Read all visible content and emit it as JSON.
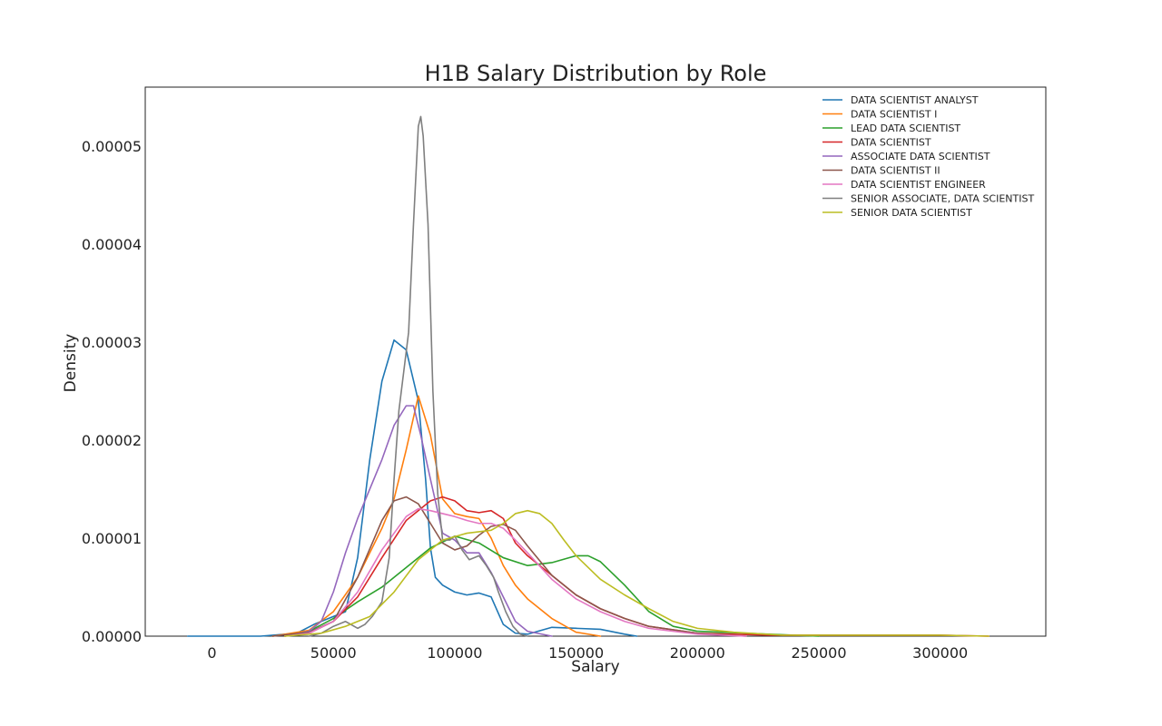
{
  "chart_data": {
    "type": "line",
    "title": "H1B Salary Distribution by Role",
    "xlabel": "Salary",
    "ylabel": "Density",
    "xlim": [
      -27500,
      343500
    ],
    "ylim": [
      0,
      5.6e-05
    ],
    "x_ticks": [
      0,
      50000,
      100000,
      150000,
      200000,
      250000,
      300000
    ],
    "x_tick_labels": [
      "0",
      "50000",
      "100000",
      "150000",
      "200000",
      "250000",
      "300000"
    ],
    "y_ticks": [
      0,
      1e-05,
      2e-05,
      3e-05,
      4e-05,
      5e-05
    ],
    "y_tick_labels": [
      "0.00000",
      "0.00001",
      "0.00002",
      "0.00003",
      "0.00004",
      "0.00005"
    ],
    "grid": false,
    "legend_position": "top-right",
    "series": [
      {
        "name": "DATA SCIENTIST ANALYST",
        "color": "#1f77b4",
        "points": [
          [
            -10000,
            0
          ],
          [
            20000,
            0
          ],
          [
            35000,
            3e-07
          ],
          [
            42000,
            1.2e-06
          ],
          [
            48000,
            1.8e-06
          ],
          [
            55000,
            2.5e-06
          ],
          [
            60000,
            8e-06
          ],
          [
            65000,
            1.8e-05
          ],
          [
            70000,
            2.6e-05
          ],
          [
            75000,
            3.02e-05
          ],
          [
            80000,
            2.92e-05
          ],
          [
            85000,
            2.4e-05
          ],
          [
            88000,
            1.6e-05
          ],
          [
            90000,
            9e-06
          ],
          [
            92000,
            6e-06
          ],
          [
            95000,
            5.2e-06
          ],
          [
            100000,
            4.5e-06
          ],
          [
            105000,
            4.2e-06
          ],
          [
            110000,
            4.4e-06
          ],
          [
            115000,
            4e-06
          ],
          [
            120000,
            1.2e-06
          ],
          [
            125000,
            3e-07
          ],
          [
            130000,
            2e-07
          ],
          [
            140000,
            9e-07
          ],
          [
            150000,
            8e-07
          ],
          [
            160000,
            7e-07
          ],
          [
            170000,
            2e-07
          ],
          [
            175000,
            0
          ]
        ]
      },
      {
        "name": "DATA SCIENTIST I",
        "color": "#ff7f0e",
        "points": [
          [
            25000,
            0
          ],
          [
            40000,
            6e-07
          ],
          [
            50000,
            2.5e-06
          ],
          [
            60000,
            6e-06
          ],
          [
            70000,
            1.1e-05
          ],
          [
            75000,
            1.4e-05
          ],
          [
            80000,
            1.9e-05
          ],
          [
            85000,
            2.45e-05
          ],
          [
            90000,
            2.05e-05
          ],
          [
            95000,
            1.4e-05
          ],
          [
            100000,
            1.25e-05
          ],
          [
            105000,
            1.22e-05
          ],
          [
            110000,
            1.2e-05
          ],
          [
            115000,
            1e-05
          ],
          [
            120000,
            7.2e-06
          ],
          [
            125000,
            5.2e-06
          ],
          [
            130000,
            3.8e-06
          ],
          [
            140000,
            1.8e-06
          ],
          [
            150000,
            4e-07
          ],
          [
            160000,
            0
          ]
        ]
      },
      {
        "name": "LEAD DATA SCIENTIST",
        "color": "#2ca02c",
        "points": [
          [
            30000,
            0
          ],
          [
            40000,
            5e-07
          ],
          [
            50000,
            1.8e-06
          ],
          [
            60000,
            3.5e-06
          ],
          [
            70000,
            5e-06
          ],
          [
            80000,
            7e-06
          ],
          [
            90000,
            9e-06
          ],
          [
            100000,
            1.02e-05
          ],
          [
            110000,
            9.5e-06
          ],
          [
            120000,
            8e-06
          ],
          [
            130000,
            7.2e-06
          ],
          [
            140000,
            7.5e-06
          ],
          [
            150000,
            8.2e-06
          ],
          [
            155000,
            8.2e-06
          ],
          [
            160000,
            7.6e-06
          ],
          [
            170000,
            5.2e-06
          ],
          [
            180000,
            2.5e-06
          ],
          [
            190000,
            1e-06
          ],
          [
            200000,
            5e-07
          ],
          [
            220000,
            3e-07
          ],
          [
            250000,
            0
          ]
        ]
      },
      {
        "name": "DATA SCIENTIST",
        "color": "#d62728",
        "points": [
          [
            30000,
            0
          ],
          [
            40000,
            3e-07
          ],
          [
            50000,
            1.5e-06
          ],
          [
            60000,
            4e-06
          ],
          [
            70000,
            8e-06
          ],
          [
            80000,
            1.18e-05
          ],
          [
            90000,
            1.38e-05
          ],
          [
            95000,
            1.42e-05
          ],
          [
            100000,
            1.38e-05
          ],
          [
            105000,
            1.28e-05
          ],
          [
            110000,
            1.26e-05
          ],
          [
            115000,
            1.28e-05
          ],
          [
            120000,
            1.2e-05
          ],
          [
            125000,
            9.5e-06
          ],
          [
            130000,
            8.2e-06
          ],
          [
            140000,
            6.2e-06
          ],
          [
            150000,
            4.2e-06
          ],
          [
            160000,
            2.8e-06
          ],
          [
            170000,
            1.8e-06
          ],
          [
            180000,
            1e-06
          ],
          [
            200000,
            3e-07
          ],
          [
            230000,
            1e-07
          ],
          [
            260000,
            1e-07
          ],
          [
            300000,
            1e-07
          ],
          [
            320000,
            0
          ]
        ]
      },
      {
        "name": "ASSOCIATE DATA SCIENTIST",
        "color": "#9467bd",
        "points": [
          [
            30000,
            0
          ],
          [
            40000,
            5e-07
          ],
          [
            45000,
            1.5e-06
          ],
          [
            50000,
            4.5e-06
          ],
          [
            55000,
            8.5e-06
          ],
          [
            60000,
            1.2e-05
          ],
          [
            65000,
            1.5e-05
          ],
          [
            70000,
            1.8e-05
          ],
          [
            75000,
            2.15e-05
          ],
          [
            80000,
            2.35e-05
          ],
          [
            83000,
            2.35e-05
          ],
          [
            86000,
            2.05e-05
          ],
          [
            90000,
            1.6e-05
          ],
          [
            95000,
            1.05e-05
          ],
          [
            100000,
            9.8e-06
          ],
          [
            105000,
            8.5e-06
          ],
          [
            110000,
            8.5e-06
          ],
          [
            115000,
            6.5e-06
          ],
          [
            120000,
            4e-06
          ],
          [
            125000,
            1.5e-06
          ],
          [
            130000,
            5e-07
          ],
          [
            140000,
            0
          ]
        ]
      },
      {
        "name": "DATA SCIENTIST II",
        "color": "#8c564b",
        "points": [
          [
            25000,
            0
          ],
          [
            40000,
            4e-07
          ],
          [
            50000,
            1.5e-06
          ],
          [
            60000,
            6e-06
          ],
          [
            70000,
            1.18e-05
          ],
          [
            75000,
            1.38e-05
          ],
          [
            80000,
            1.42e-05
          ],
          [
            85000,
            1.35e-05
          ],
          [
            90000,
            1.15e-05
          ],
          [
            95000,
            9.5e-06
          ],
          [
            100000,
            8.8e-06
          ],
          [
            105000,
            9.2e-06
          ],
          [
            110000,
            1.03e-05
          ],
          [
            115000,
            1.12e-05
          ],
          [
            120000,
            1.14e-05
          ],
          [
            125000,
            1.08e-05
          ],
          [
            130000,
            9.2e-06
          ],
          [
            140000,
            6.2e-06
          ],
          [
            150000,
            4.2e-06
          ],
          [
            160000,
            2.8e-06
          ],
          [
            170000,
            1.8e-06
          ],
          [
            180000,
            1e-06
          ],
          [
            200000,
            3e-07
          ],
          [
            220000,
            0
          ]
        ]
      },
      {
        "name": "DATA SCIENTIST ENGINEER",
        "color": "#e377c2",
        "points": [
          [
            30000,
            0
          ],
          [
            40000,
            3e-07
          ],
          [
            50000,
            1.5e-06
          ],
          [
            60000,
            4.5e-06
          ],
          [
            70000,
            8.8e-06
          ],
          [
            80000,
            1.22e-05
          ],
          [
            85000,
            1.3e-05
          ],
          [
            90000,
            1.28e-05
          ],
          [
            95000,
            1.25e-05
          ],
          [
            100000,
            1.22e-05
          ],
          [
            105000,
            1.18e-05
          ],
          [
            110000,
            1.15e-05
          ],
          [
            115000,
            1.15e-05
          ],
          [
            120000,
            1.1e-05
          ],
          [
            125000,
            9.8e-06
          ],
          [
            130000,
            8.5e-06
          ],
          [
            140000,
            5.8e-06
          ],
          [
            150000,
            3.8e-06
          ],
          [
            160000,
            2.5e-06
          ],
          [
            170000,
            1.5e-06
          ],
          [
            180000,
            8e-07
          ],
          [
            200000,
            2e-07
          ],
          [
            220000,
            0
          ]
        ]
      },
      {
        "name": "SENIOR ASSOCIATE, DATA SCIENTIST",
        "color": "#7f7f7f",
        "points": [
          [
            40000,
            0
          ],
          [
            45000,
            3e-07
          ],
          [
            50000,
            1e-06
          ],
          [
            55000,
            1.5e-06
          ],
          [
            60000,
            8e-07
          ],
          [
            63000,
            1.2e-06
          ],
          [
            66000,
            2e-06
          ],
          [
            70000,
            3.5e-06
          ],
          [
            73000,
            8e-06
          ],
          [
            75000,
            1.6e-05
          ],
          [
            77000,
            2.3e-05
          ],
          [
            79000,
            2.7e-05
          ],
          [
            81000,
            3.1e-05
          ],
          [
            83000,
            4.2e-05
          ],
          [
            85000,
            5.2e-05
          ],
          [
            86000,
            5.3e-05
          ],
          [
            87000,
            5.1e-05
          ],
          [
            89000,
            4.2e-05
          ],
          [
            91000,
            2.5e-05
          ],
          [
            93000,
            1.45e-05
          ],
          [
            95000,
            9.8e-06
          ],
          [
            98000,
            9.8e-06
          ],
          [
            100000,
            1.02e-05
          ],
          [
            103000,
            8.8e-06
          ],
          [
            106000,
            7.8e-06
          ],
          [
            110000,
            8.2e-06
          ],
          [
            113000,
            7.2e-06
          ],
          [
            116000,
            6e-06
          ],
          [
            118000,
            4.5e-06
          ],
          [
            121000,
            2.5e-06
          ],
          [
            124000,
            1e-06
          ],
          [
            127000,
            2e-07
          ],
          [
            130000,
            0
          ]
        ]
      },
      {
        "name": "SENIOR DATA SCIENTIST",
        "color": "#bcbd22",
        "points": [
          [
            30000,
            0
          ],
          [
            45000,
            3e-07
          ],
          [
            55000,
            1e-06
          ],
          [
            65000,
            2e-06
          ],
          [
            75000,
            4.5e-06
          ],
          [
            85000,
            7.8e-06
          ],
          [
            95000,
            9.8e-06
          ],
          [
            105000,
            1.05e-05
          ],
          [
            115000,
            1.08e-05
          ],
          [
            120000,
            1.15e-05
          ],
          [
            125000,
            1.25e-05
          ],
          [
            130000,
            1.28e-05
          ],
          [
            135000,
            1.25e-05
          ],
          [
            140000,
            1.15e-05
          ],
          [
            145000,
            9.8e-06
          ],
          [
            150000,
            8.2e-06
          ],
          [
            160000,
            5.8e-06
          ],
          [
            170000,
            4.2e-06
          ],
          [
            180000,
            2.8e-06
          ],
          [
            190000,
            1.5e-06
          ],
          [
            200000,
            8e-07
          ],
          [
            215000,
            4e-07
          ],
          [
            235000,
            1e-07
          ],
          [
            255000,
            1e-07
          ],
          [
            280000,
            1e-07
          ],
          [
            300000,
            1e-07
          ],
          [
            320000,
            0
          ]
        ]
      }
    ]
  }
}
